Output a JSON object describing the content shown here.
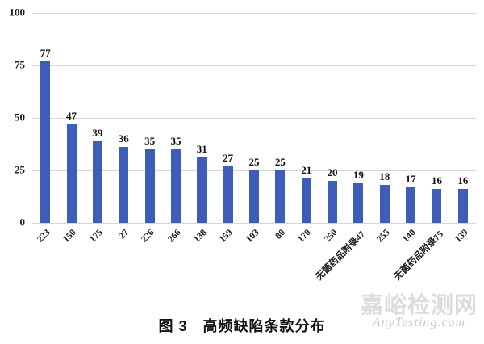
{
  "figure": {
    "caption": "图 3　高频缺陷条款分布"
  },
  "watermark": {
    "site_name": "嘉峪检测网",
    "domain": "AnyTesting.com"
  },
  "chart_data": {
    "type": "bar",
    "title": "图 3　高频缺陷条款分布",
    "categories": [
      "223",
      "150",
      "175",
      "27",
      "226",
      "266",
      "138",
      "159",
      "103",
      "80",
      "170",
      "250",
      "无菌药品附录47",
      "255",
      "140",
      "无菌药品附录75",
      "139"
    ],
    "values": [
      77,
      47,
      39,
      36,
      35,
      35,
      31,
      27,
      25,
      25,
      21,
      20,
      19,
      18,
      17,
      16,
      16
    ],
    "xlabel": "",
    "ylabel": "",
    "ylim": [
      0,
      100
    ],
    "yticks": [
      0,
      25,
      50,
      75,
      100
    ],
    "grid": true,
    "legend": "none",
    "bar_color": "#3e5db8",
    "gridline_color": "#d7d7d7",
    "label_color": "#111111"
  }
}
